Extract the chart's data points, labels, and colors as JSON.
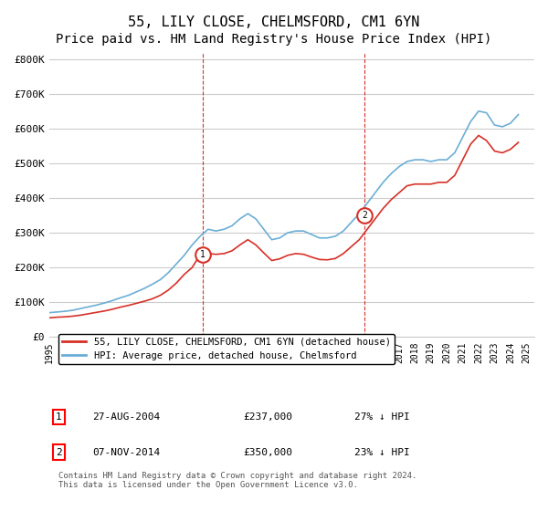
{
  "title": "55, LILY CLOSE, CHELMSFORD, CM1 6YN",
  "subtitle": "Price paid vs. HM Land Registry's House Price Index (HPI)",
  "title_fontsize": 11,
  "subtitle_fontsize": 10,
  "ylabel_ticks": [
    "£0",
    "£100K",
    "£200K",
    "£300K",
    "£400K",
    "£500K",
    "£600K",
    "£700K",
    "£800K"
  ],
  "ytick_values": [
    0,
    100000,
    200000,
    300000,
    400000,
    500000,
    600000,
    700000,
    800000
  ],
  "ylim": [
    0,
    820000
  ],
  "xlim_start": 1995.0,
  "xlim_end": 2025.5,
  "hpi_color": "#6baed6",
  "price_color": "#d73027",
  "vline_color": "#d73027",
  "grid_color": "#cccccc",
  "background_color": "#ffffff",
  "legend_label_price": "55, LILY CLOSE, CHELMSFORD, CM1 6YN (detached house)",
  "legend_label_hpi": "HPI: Average price, detached house, Chelmsford",
  "transaction1_label": "1",
  "transaction1_date": "27-AUG-2004",
  "transaction1_price": "£237,000",
  "transaction1_note": "27% ↓ HPI",
  "transaction2_label": "2",
  "transaction2_date": "07-NOV-2014",
  "transaction2_price": "£350,000",
  "transaction2_note": "23% ↓ HPI",
  "transaction1_x": 2004.65,
  "transaction2_x": 2014.85,
  "footnote": "Contains HM Land Registry data © Crown copyright and database right 2024.\nThis data is licensed under the Open Government Licence v3.0.",
  "hpi_data_x": [
    1995,
    1995.5,
    1996,
    1996.5,
    1997,
    1997.5,
    1998,
    1998.5,
    1999,
    1999.5,
    2000,
    2000.5,
    2001,
    2001.5,
    2002,
    2002.5,
    2003,
    2003.5,
    2004,
    2004.5,
    2005,
    2005.5,
    2006,
    2006.5,
    2007,
    2007.5,
    2008,
    2008.5,
    2009,
    2009.5,
    2010,
    2010.5,
    2011,
    2011.5,
    2012,
    2012.5,
    2013,
    2013.5,
    2014,
    2014.5,
    2015,
    2015.5,
    2016,
    2016.5,
    2017,
    2017.5,
    2018,
    2018.5,
    2019,
    2019.5,
    2020,
    2020.5,
    2021,
    2021.5,
    2022,
    2022.5,
    2023,
    2023.5,
    2024,
    2024.5
  ],
  "hpi_data_y": [
    70000,
    72000,
    74000,
    77000,
    82000,
    87000,
    92000,
    98000,
    105000,
    113000,
    120000,
    130000,
    140000,
    152000,
    165000,
    185000,
    210000,
    235000,
    265000,
    290000,
    310000,
    305000,
    310000,
    320000,
    340000,
    355000,
    340000,
    310000,
    280000,
    285000,
    300000,
    305000,
    305000,
    295000,
    285000,
    285000,
    290000,
    305000,
    330000,
    355000,
    385000,
    415000,
    445000,
    470000,
    490000,
    505000,
    510000,
    510000,
    505000,
    510000,
    510000,
    530000,
    575000,
    620000,
    650000,
    645000,
    610000,
    605000,
    615000,
    640000
  ],
  "price_data_x": [
    1995,
    1995.5,
    1996,
    1996.5,
    1997,
    1997.5,
    1998,
    1998.5,
    1999,
    1999.5,
    2000,
    2000.5,
    2001,
    2001.5,
    2002,
    2002.5,
    2003,
    2003.5,
    2004,
    2004.5,
    2005,
    2005.5,
    2006,
    2006.5,
    2007,
    2007.5,
    2008,
    2008.5,
    2009,
    2009.5,
    2010,
    2010.5,
    2011,
    2011.5,
    2012,
    2012.5,
    2013,
    2013.5,
    2014,
    2014.5,
    2015,
    2015.5,
    2016,
    2016.5,
    2017,
    2017.5,
    2018,
    2018.5,
    2019,
    2019.5,
    2020,
    2020.5,
    2021,
    2021.5,
    2022,
    2022.5,
    2023,
    2023.5,
    2024,
    2024.5
  ],
  "price_data_y": [
    55000,
    57000,
    58000,
    60000,
    63000,
    67000,
    71000,
    75000,
    80000,
    86000,
    91000,
    97000,
    103000,
    110000,
    120000,
    135000,
    155000,
    180000,
    200000,
    237000,
    240000,
    238000,
    240000,
    248000,
    265000,
    280000,
    265000,
    242000,
    220000,
    225000,
    235000,
    240000,
    238000,
    230000,
    223000,
    222000,
    226000,
    240000,
    260000,
    280000,
    310000,
    340000,
    370000,
    395000,
    415000,
    435000,
    440000,
    440000,
    440000,
    445000,
    445000,
    465000,
    510000,
    555000,
    580000,
    565000,
    535000,
    530000,
    540000,
    560000
  ]
}
